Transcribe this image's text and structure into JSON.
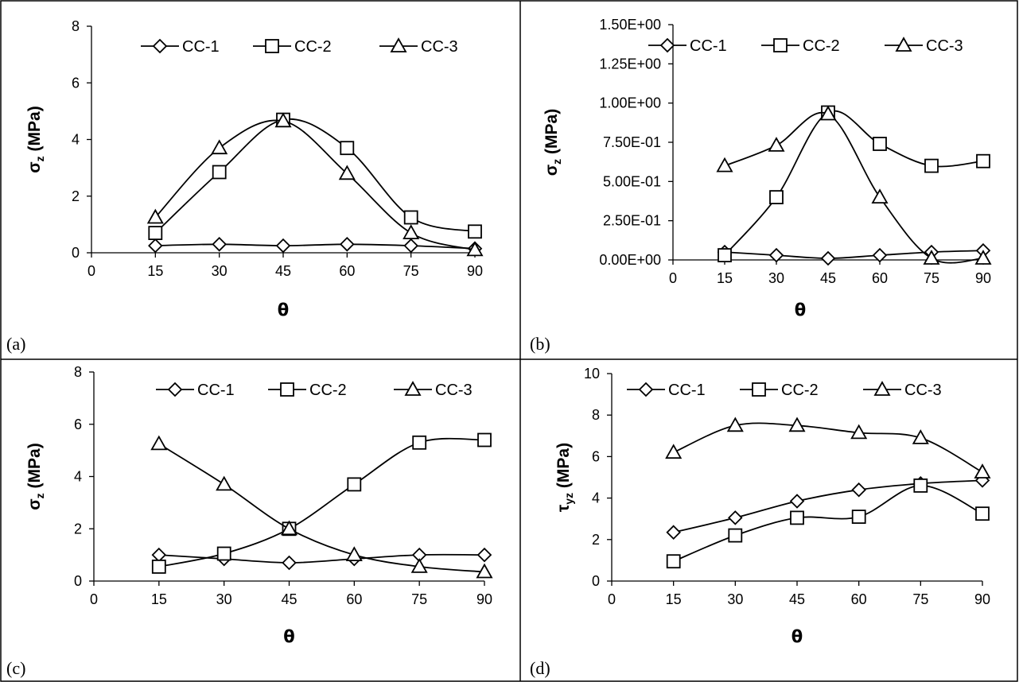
{
  "chart_data": [
    {
      "type": "line",
      "panel_label": "(a)",
      "xlabel": "θ",
      "ylabel_main": "σ",
      "ylabel_sub": "z",
      "ylabel_unit": " (MPa)",
      "x_ticks": [
        "0",
        "15",
        "30",
        "45",
        "60",
        "75",
        "90"
      ],
      "y_ticks": [
        "0",
        "2",
        "4",
        "6",
        "8"
      ],
      "y_tick_values": [
        0,
        2,
        4,
        6,
        8
      ],
      "xlim": [
        0,
        90
      ],
      "ylim": [
        0,
        8
      ],
      "x": [
        15,
        30,
        45,
        60,
        75,
        90
      ],
      "legend_position": "top",
      "series": [
        {
          "name": "CC-1",
          "marker": "diamond",
          "values": [
            0.25,
            0.3,
            0.25,
            0.3,
            0.25,
            0.15
          ]
        },
        {
          "name": "CC-2",
          "marker": "square",
          "values": [
            0.7,
            2.85,
            4.7,
            3.7,
            1.25,
            0.75
          ]
        },
        {
          "name": "CC-3",
          "marker": "triangle",
          "values": [
            1.25,
            3.7,
            4.65,
            2.8,
            0.7,
            0.1
          ]
        }
      ]
    },
    {
      "type": "line",
      "panel_label": "(b)",
      "xlabel": "θ",
      "ylabel_main": "σ",
      "ylabel_sub": "z",
      "ylabel_unit": " (MPa)",
      "x_ticks": [
        "0",
        "15",
        "30",
        "45",
        "60",
        "75",
        "90"
      ],
      "y_ticks": [
        "0.00E+00",
        "2.50E-01",
        "5.00E-01",
        "7.50E-01",
        "1.00E+00",
        "1.25E+00",
        "1.50E+00"
      ],
      "y_tick_values": [
        0,
        0.25,
        0.5,
        0.75,
        1.0,
        1.25,
        1.5
      ],
      "xlim": [
        0,
        90
      ],
      "ylim": [
        0,
        1.5
      ],
      "x": [
        15,
        30,
        45,
        60,
        75,
        90
      ],
      "legend_position": "top",
      "series": [
        {
          "name": "CC-1",
          "marker": "diamond",
          "values": [
            0.05,
            0.03,
            0.01,
            0.03,
            0.05,
            0.06
          ]
        },
        {
          "name": "CC-2",
          "marker": "square",
          "values": [
            0.03,
            0.4,
            0.94,
            0.74,
            0.6,
            0.63
          ]
        },
        {
          "name": "CC-3",
          "marker": "triangle",
          "values": [
            0.6,
            0.73,
            0.93,
            0.4,
            0.01,
            0.01
          ]
        }
      ]
    },
    {
      "type": "line",
      "panel_label": "(c)",
      "xlabel": "θ",
      "ylabel_main": "σ",
      "ylabel_sub": "z",
      "ylabel_unit": " (MPa)",
      "x_ticks": [
        "0",
        "15",
        "30",
        "45",
        "60",
        "75",
        "90"
      ],
      "y_ticks": [
        "0",
        "2",
        "4",
        "6",
        "8"
      ],
      "y_tick_values": [
        0,
        2,
        4,
        6,
        8
      ],
      "xlim": [
        0,
        90
      ],
      "ylim": [
        0,
        8
      ],
      "x": [
        15,
        30,
        45,
        60,
        75,
        90
      ],
      "legend_position": "top",
      "series": [
        {
          "name": "CC-1",
          "marker": "diamond",
          "values": [
            1.0,
            0.85,
            0.7,
            0.85,
            1.0,
            1.0
          ]
        },
        {
          "name": "CC-2",
          "marker": "square",
          "values": [
            0.55,
            1.05,
            2.0,
            3.7,
            5.3,
            5.4
          ]
        },
        {
          "name": "CC-3",
          "marker": "triangle",
          "values": [
            5.25,
            3.7,
            2.0,
            1.0,
            0.55,
            0.35
          ]
        }
      ]
    },
    {
      "type": "line",
      "panel_label": "(d)",
      "xlabel": "θ",
      "ylabel_main": "τ",
      "ylabel_sub": "yz",
      "ylabel_unit": " (MPa)",
      "x_ticks": [
        "0",
        "15",
        "30",
        "45",
        "60",
        "75",
        "90"
      ],
      "y_ticks": [
        "0",
        "2",
        "4",
        "6",
        "8",
        "10"
      ],
      "y_tick_values": [
        0,
        2,
        4,
        6,
        8,
        10
      ],
      "xlim": [
        0,
        90
      ],
      "ylim": [
        0,
        10
      ],
      "x": [
        15,
        30,
        45,
        60,
        75,
        90
      ],
      "legend_position": "top",
      "series": [
        {
          "name": "CC-1",
          "marker": "diamond",
          "values": [
            2.35,
            3.05,
            3.85,
            4.4,
            4.7,
            4.85
          ]
        },
        {
          "name": "CC-2",
          "marker": "square",
          "values": [
            0.95,
            2.2,
            3.05,
            3.1,
            4.6,
            3.25
          ]
        },
        {
          "name": "CC-3",
          "marker": "triangle",
          "values": [
            6.2,
            7.5,
            7.5,
            7.15,
            6.9,
            5.25
          ]
        }
      ]
    }
  ]
}
